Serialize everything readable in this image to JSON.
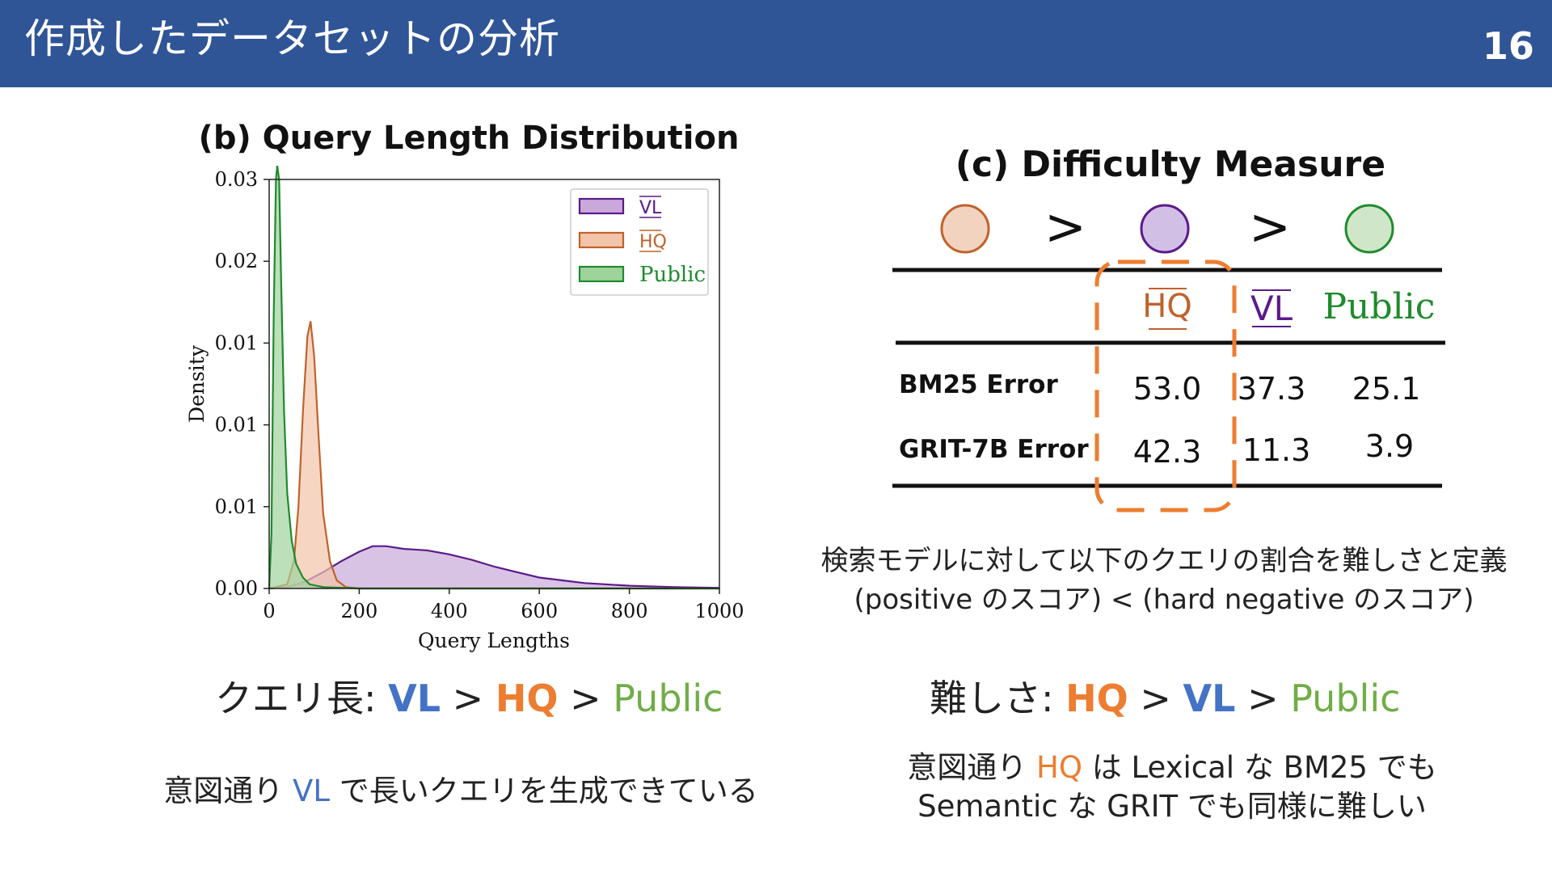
{
  "slide": {
    "title": "作成したデータセットの分析",
    "page_number": "16"
  },
  "colors": {
    "header_bg": "#2f5597",
    "vl": "#4472c4",
    "hq": "#ed7d31",
    "public": "#70ad47",
    "vl_plot": "#5b1a8a",
    "hq_plot": "#c0622b",
    "public_plot": "#1f8b2c"
  },
  "chart_data": {
    "type": "area",
    "title": "(b) Query Length Distribution",
    "xlabel": "Query Lengths",
    "ylabel": "Density",
    "xlim": [
      0,
      1000
    ],
    "ylim": [
      0,
      0.03
    ],
    "x_ticks": [
      "0",
      "200",
      "400",
      "600",
      "800",
      "1000"
    ],
    "y_ticks": [
      "0.00",
      "0.01",
      "0.01",
      "0.01",
      "0.02",
      "0.03"
    ],
    "legend_position": "top-right",
    "series": [
      {
        "name": "VL",
        "color": "#5b1a8a",
        "fill": "#c9a9d9",
        "points": [
          [
            0,
            0
          ],
          [
            40,
            0.0001
          ],
          [
            80,
            0.0005
          ],
          [
            120,
            0.0012
          ],
          [
            160,
            0.002
          ],
          [
            200,
            0.0027
          ],
          [
            230,
            0.0031
          ],
          [
            260,
            0.0031
          ],
          [
            300,
            0.0029
          ],
          [
            350,
            0.0028
          ],
          [
            400,
            0.0025
          ],
          [
            450,
            0.0021
          ],
          [
            500,
            0.0016
          ],
          [
            550,
            0.0012
          ],
          [
            600,
            0.0008
          ],
          [
            650,
            0.0006
          ],
          [
            700,
            0.0004
          ],
          [
            800,
            0.0002
          ],
          [
            900,
            0.0001
          ],
          [
            1000,
            5e-05
          ]
        ]
      },
      {
        "name": "HQ",
        "color": "#c0622b",
        "fill": "#f2c4a9",
        "points": [
          [
            0,
            0
          ],
          [
            40,
            0.0003
          ],
          [
            55,
            0.002
          ],
          [
            65,
            0.006
          ],
          [
            75,
            0.013
          ],
          [
            85,
            0.0185
          ],
          [
            92,
            0.0196
          ],
          [
            100,
            0.017
          ],
          [
            110,
            0.011
          ],
          [
            120,
            0.0055
          ],
          [
            135,
            0.002
          ],
          [
            150,
            0.0006
          ],
          [
            170,
            0.0001
          ],
          [
            200,
            0
          ],
          [
            1000,
            0
          ]
        ]
      },
      {
        "name": "Public",
        "color": "#1f8b2c",
        "fill": "#9fd39c",
        "points": [
          [
            0,
            0
          ],
          [
            5,
            0.004
          ],
          [
            10,
            0.02
          ],
          [
            15,
            0.03
          ],
          [
            18,
            0.031
          ],
          [
            22,
            0.03
          ],
          [
            27,
            0.022
          ],
          [
            33,
            0.013
          ],
          [
            40,
            0.007
          ],
          [
            50,
            0.0035
          ],
          [
            60,
            0.0018
          ],
          [
            75,
            0.0008
          ],
          [
            90,
            0.0003
          ],
          [
            120,
            0.0001
          ],
          [
            200,
            0
          ],
          [
            1000,
            0
          ]
        ]
      }
    ]
  },
  "difficulty": {
    "title": "(c) Difficulty Measure",
    "order_symbols": [
      ">",
      ">"
    ],
    "columns": [
      "HQ",
      "VL",
      "Public"
    ],
    "rows": [
      {
        "label": "BM25 Error",
        "values": [
          "53.0",
          "37.3",
          "25.1"
        ]
      },
      {
        "label": "GRIT-7B Error",
        "values": [
          "42.3",
          "11.3",
          "3.9"
        ]
      }
    ],
    "definition_line1": "検索モデルに対して以下のクエリの割合を難しさと定義",
    "definition_line2": "(positive のスコア) < (hard negative のスコア)"
  },
  "captions": {
    "left": {
      "prefix": "クエリ長: ",
      "a": "VL",
      "sep1": " > ",
      "b": "HQ",
      "sep2": " > ",
      "c": "Public"
    },
    "right": {
      "prefix": "難しさ: ",
      "a": "HQ",
      "sep1": " > ",
      "b": "VL",
      "sep2": " > ",
      "c": "Public"
    }
  },
  "notes": {
    "left": {
      "p1": "意図通り ",
      "hl": "VL",
      "p2": " で長いクエリを生成できている"
    },
    "right": {
      "p1": "意図通り ",
      "hl": "HQ",
      "p2": " は Lexical な BM25 でも",
      "line2": "Semantic な GRIT でも同様に難しい"
    }
  }
}
